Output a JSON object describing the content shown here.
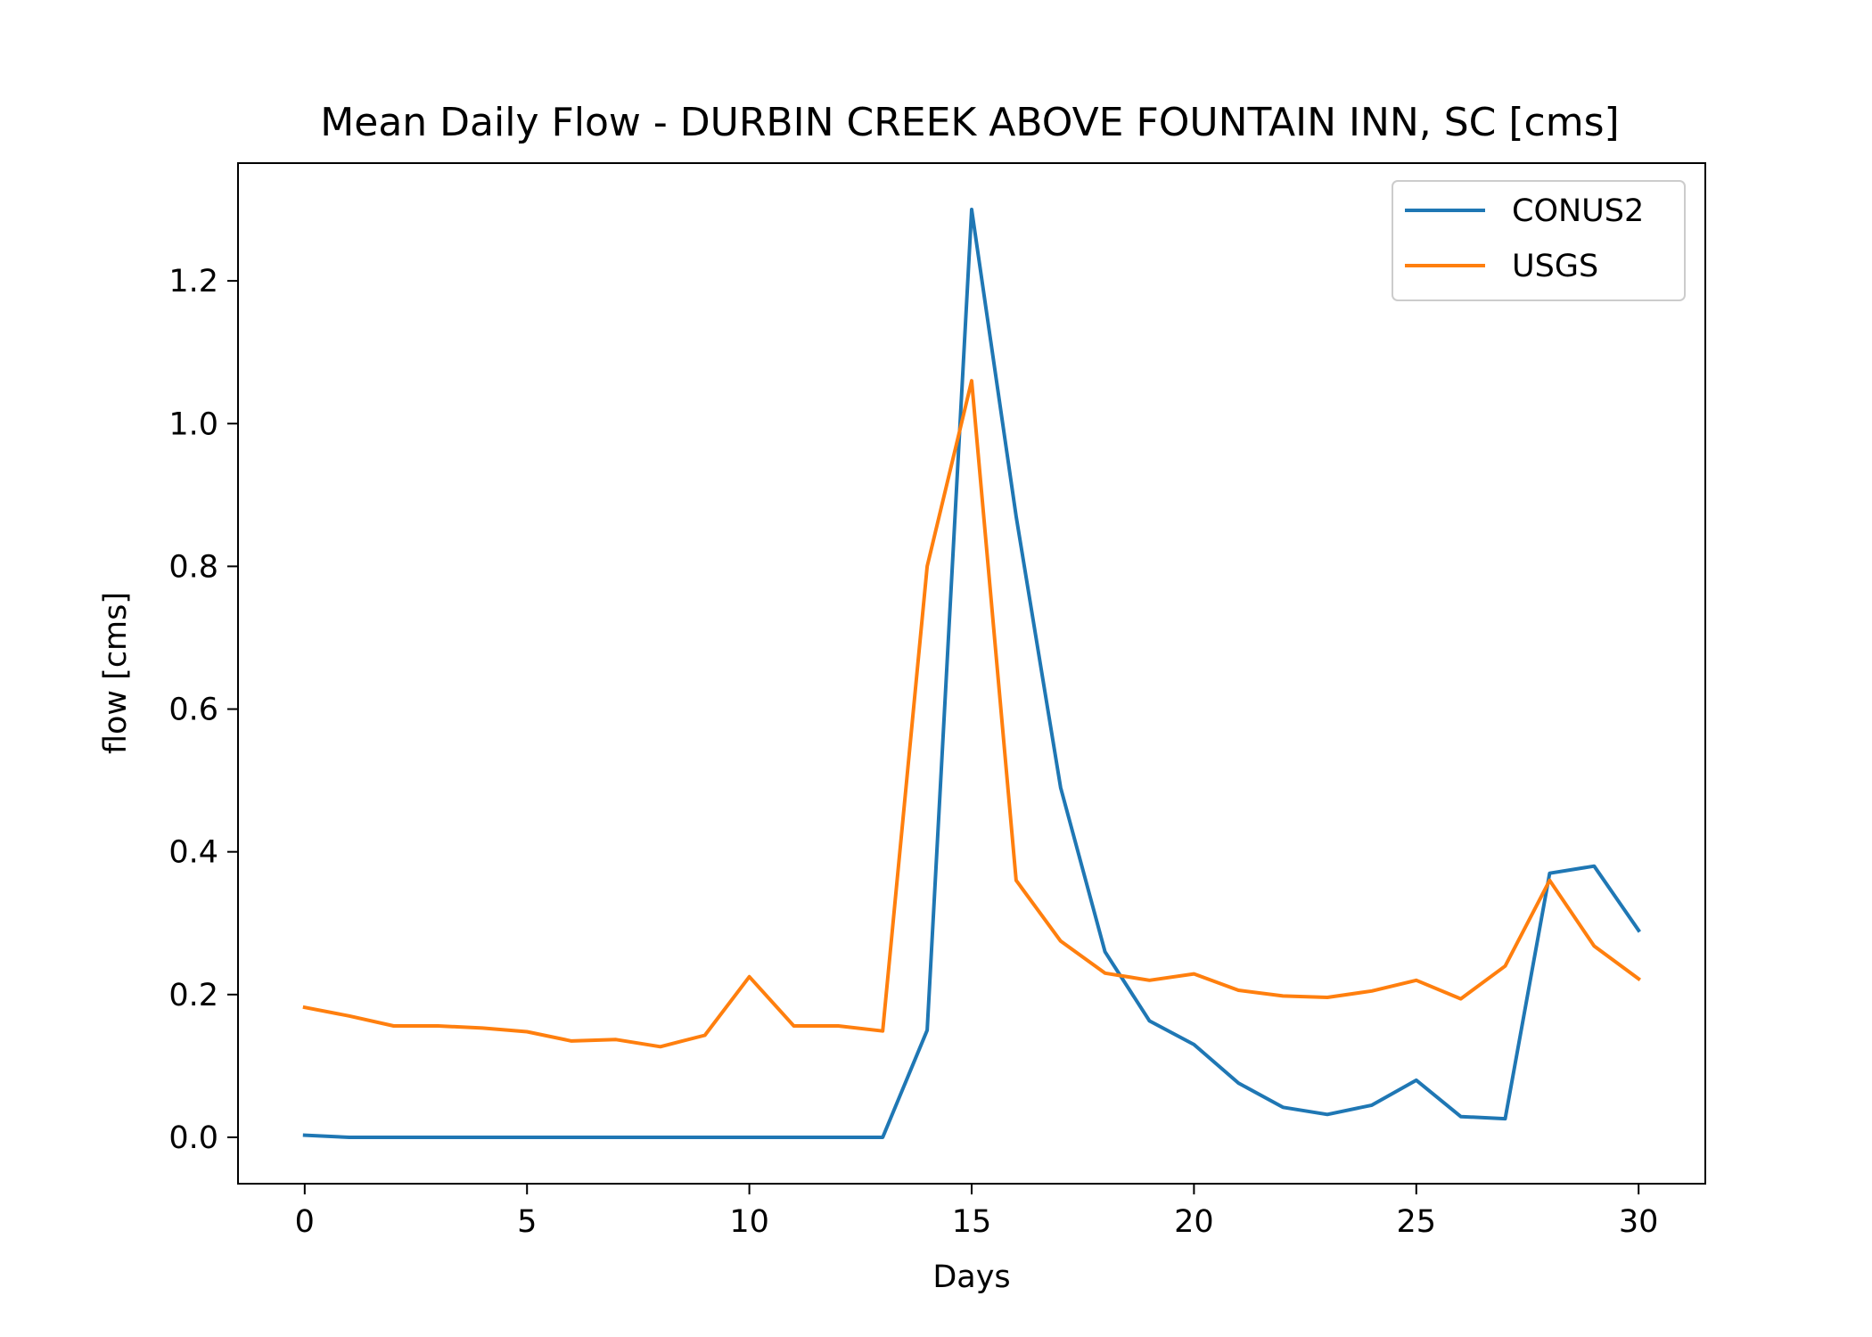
{
  "chart_data": {
    "type": "line",
    "title": "Mean Daily Flow - DURBIN CREEK ABOVE FOUNTAIN INN, SC [cms]",
    "xlabel": "Days",
    "ylabel": "flow [cms]",
    "xlim": [
      -1.5,
      31.5
    ],
    "ylim": [
      -0.065,
      1.365
    ],
    "xticks": [
      0,
      5,
      10,
      15,
      20,
      25,
      30
    ],
    "yticks": [
      0.0,
      0.2,
      0.4,
      0.6,
      0.8,
      1.0,
      1.2
    ],
    "xtick_labels": [
      "0",
      "5",
      "10",
      "15",
      "20",
      "25",
      "30"
    ],
    "ytick_labels": [
      "0.0",
      "0.2",
      "0.4",
      "0.6",
      "0.8",
      "1.0",
      "1.2"
    ],
    "legend_position": "top-right",
    "grid": false,
    "x": [
      0,
      1,
      2,
      3,
      4,
      5,
      6,
      7,
      8,
      9,
      10,
      11,
      12,
      13,
      14,
      15,
      16,
      17,
      18,
      19,
      20,
      21,
      22,
      23,
      24,
      25,
      26,
      27,
      28,
      29,
      30
    ],
    "series": [
      {
        "name": "CONUS2",
        "color": "#1f77b4",
        "values": [
          0.003,
          0.0,
          0.0,
          0.0,
          0.0,
          0.0,
          0.0,
          0.0,
          0.0,
          0.0,
          0.0,
          0.0,
          0.0,
          0.0,
          0.15,
          1.3,
          0.87,
          0.49,
          0.26,
          0.163,
          0.13,
          0.076,
          0.042,
          0.032,
          0.045,
          0.08,
          0.029,
          0.026,
          0.37,
          0.38,
          0.29
        ]
      },
      {
        "name": "USGS",
        "color": "#ff7f0e",
        "values": [
          0.182,
          0.17,
          0.156,
          0.156,
          0.153,
          0.148,
          0.135,
          0.137,
          0.127,
          0.143,
          0.225,
          0.156,
          0.156,
          0.149,
          0.8,
          1.06,
          0.36,
          0.275,
          0.23,
          0.22,
          0.229,
          0.206,
          0.198,
          0.196,
          0.205,
          0.22,
          0.194,
          0.24,
          0.36,
          0.268,
          0.222
        ]
      }
    ]
  }
}
